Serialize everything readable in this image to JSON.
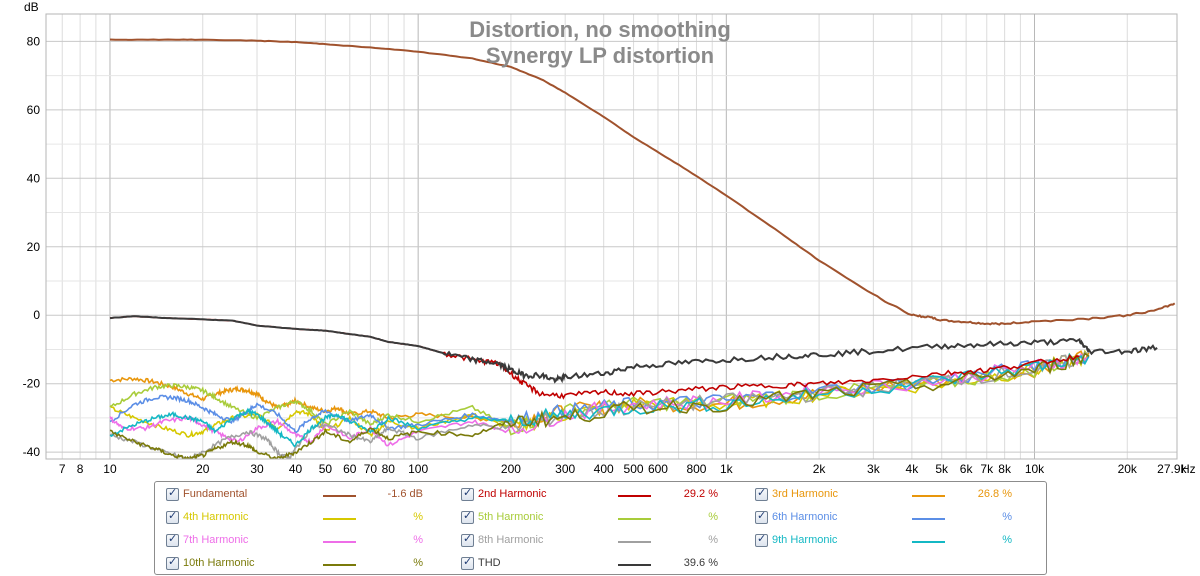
{
  "chart_data": {
    "type": "line",
    "title": "Distortion, no smoothing",
    "subtitle": "Synergy LP distortion",
    "ylabel": "dB",
    "xunit": "Hz",
    "xscale": "log",
    "xlim": [
      6.2,
      29000
    ],
    "ylim": [
      -42,
      88
    ],
    "grid": true,
    "y_ticks": [
      80,
      60,
      40,
      20,
      0,
      -20,
      -40
    ],
    "x_ticks": [
      {
        "v": 7,
        "label": "7"
      },
      {
        "v": 8,
        "label": "8"
      },
      {
        "v": 10,
        "label": "10"
      },
      {
        "v": 20,
        "label": "20"
      },
      {
        "v": 30,
        "label": "30"
      },
      {
        "v": 40,
        "label": "40"
      },
      {
        "v": 50,
        "label": "50"
      },
      {
        "v": 60,
        "label": "60"
      },
      {
        "v": 70,
        "label": "70"
      },
      {
        "v": 80,
        "label": "80"
      },
      {
        "v": 100,
        "label": "100"
      },
      {
        "v": 200,
        "label": "200"
      },
      {
        "v": 300,
        "label": "300"
      },
      {
        "v": 400,
        "label": "400"
      },
      {
        "v": 500,
        "label": "500"
      },
      {
        "v": 600,
        "label": "600"
      },
      {
        "v": 800,
        "label": "800"
      },
      {
        "v": 1000,
        "label": "1k"
      },
      {
        "v": 2000,
        "label": "2k"
      },
      {
        "v": 3000,
        "label": "3k"
      },
      {
        "v": 4000,
        "label": "4k"
      },
      {
        "v": 5000,
        "label": "5k"
      },
      {
        "v": 6000,
        "label": "6k"
      },
      {
        "v": 7000,
        "label": "7k"
      },
      {
        "v": 8000,
        "label": "8k"
      },
      {
        "v": 10000,
        "label": "10k"
      },
      {
        "v": 20000,
        "label": "20k"
      },
      {
        "v": 27900,
        "label": "27.9k"
      }
    ],
    "series": [
      {
        "name": "Fundamental",
        "color": "#a0522d",
        "value": "-1.6 dB",
        "x": [
          10,
          15,
          20,
          30,
          40,
          50,
          70,
          100,
          150,
          200,
          250,
          300,
          400,
          500,
          700,
          1000,
          1500,
          2000,
          3000,
          4000,
          4500,
          5000,
          6000,
          7000,
          8000,
          10000,
          15000,
          20000,
          25000,
          28500
        ],
        "y": [
          80.5,
          80.5,
          80.5,
          80.2,
          79.8,
          79.2,
          78.2,
          77,
          75,
          72.5,
          69,
          65,
          58,
          52,
          44,
          35,
          24,
          16,
          6,
          0,
          -0.5,
          -1.5,
          -2,
          -2.5,
          -2.5,
          -1.8,
          -1,
          0,
          1.5,
          3.5
        ]
      },
      {
        "name": "2nd Harmonic",
        "color": "#c00000",
        "value": "29.2 %",
        "x": [
          10,
          12,
          15,
          20,
          25,
          30,
          40,
          50,
          60,
          70,
          80,
          100,
          120,
          150,
          180,
          200,
          220,
          250,
          300,
          400,
          500,
          700,
          1000,
          1500,
          2000,
          3000,
          5000,
          7000,
          10000,
          14000
        ],
        "y": [
          -0.8,
          -0.3,
          -0.8,
          -1.2,
          -1.6,
          -3,
          -4,
          -4.5,
          -5.5,
          -6.3,
          -7.8,
          -9,
          -11,
          -13,
          -14,
          -17,
          -20,
          -23,
          -23.5,
          -22.5,
          -23,
          -22,
          -21,
          -20.5,
          -20,
          -19,
          -17,
          -16,
          -14,
          -12
        ]
      },
      {
        "name": "3rd Harmonic",
        "color": "#e8960c",
        "value": "26.8 %",
        "x": [
          10,
          12,
          14,
          16,
          18,
          20,
          22,
          24,
          26,
          28,
          30,
          32,
          35,
          38,
          40,
          45,
          50,
          55,
          60,
          70,
          80,
          100,
          150,
          200,
          300,
          500,
          1000,
          2000,
          5000,
          10000,
          15000
        ],
        "y": [
          -19,
          -18.5,
          -19.5,
          -21,
          -23,
          -24.5,
          -23,
          -22,
          -21.5,
          -22,
          -23,
          -25,
          -27,
          -26,
          -25,
          -27,
          -28,
          -27,
          -29,
          -28,
          -30,
          -29,
          -30,
          -31,
          -28,
          -26,
          -26,
          -23,
          -19,
          -16,
          -11
        ]
      },
      {
        "name": "4th Harmonic",
        "color": "#d6c800",
        "value": "%",
        "x": [
          10,
          12,
          15,
          18,
          20,
          22,
          25,
          30,
          35,
          40,
          45,
          50,
          60,
          70,
          80,
          100,
          150,
          200,
          300,
          500,
          1000,
          2000,
          5000,
          10000,
          15000
        ],
        "y": [
          -27,
          -30,
          -33,
          -35,
          -34,
          -32,
          -30,
          -29,
          -33,
          -28,
          -29,
          -34,
          -30,
          -35,
          -31,
          -33,
          -29,
          -33,
          -29,
          -26,
          -26,
          -23,
          -20,
          -16,
          -12
        ]
      },
      {
        "name": "5th Harmonic",
        "color": "#a8cc3a",
        "value": "%",
        "x": [
          10,
          12,
          14,
          16,
          18,
          20,
          22,
          25,
          30,
          35,
          40,
          45,
          50,
          60,
          70,
          80,
          100,
          150,
          200,
          300,
          500,
          1000,
          2000,
          5000,
          10000,
          15000
        ],
        "y": [
          -27,
          -23,
          -21,
          -20.5,
          -21,
          -22,
          -24,
          -27,
          -30,
          -27,
          -25,
          -28,
          -32,
          -28,
          -32,
          -29,
          -31,
          -27,
          -33,
          -28,
          -26,
          -25,
          -23,
          -20,
          -16,
          -12
        ]
      },
      {
        "name": "6th Harmonic",
        "color": "#5b8ee6",
        "value": "%",
        "x": [
          10,
          12,
          14,
          16,
          18,
          20,
          22,
          25,
          28,
          30,
          35,
          40,
          45,
          50,
          60,
          70,
          80,
          100,
          150,
          200,
          300,
          500,
          1000,
          2000,
          5000,
          10000,
          15000
        ],
        "y": [
          -31,
          -26,
          -24,
          -24,
          -25,
          -27,
          -29,
          -31,
          -28,
          -26,
          -29,
          -34,
          -30,
          -28,
          -31,
          -29,
          -33,
          -32,
          -29,
          -31,
          -28,
          -26,
          -25,
          -22,
          -19,
          -15,
          -12
        ]
      },
      {
        "name": "7th Harmonic",
        "color": "#ee6ee8",
        "value": "%",
        "x": [
          10,
          11,
          13,
          15,
          18,
          20,
          23,
          26,
          30,
          35,
          40,
          45,
          50,
          60,
          70,
          80,
          100,
          150,
          200,
          300,
          500,
          1000,
          2000,
          5000,
          10000,
          15000
        ],
        "y": [
          -30,
          -33,
          -33,
          -31,
          -30,
          -32,
          -35,
          -37,
          -33,
          -31,
          -35,
          -37,
          -32,
          -36,
          -33,
          -38,
          -34,
          -31,
          -34,
          -29,
          -26,
          -25,
          -22,
          -19,
          -15,
          -12
        ]
      },
      {
        "name": "8th Harmonic",
        "color": "#a0a0a0",
        "value": "%",
        "x": [
          10,
          12,
          15,
          18,
          20,
          24,
          28,
          32,
          35,
          38,
          40,
          45,
          50,
          60,
          70,
          80,
          100,
          150,
          200,
          300,
          500,
          1000,
          2000,
          5000,
          10000,
          15000
        ],
        "y": [
          -35,
          -37,
          -40,
          -42,
          -40,
          -36,
          -34,
          -36,
          -40,
          -42,
          -39,
          -33,
          -32,
          -35,
          -37,
          -33,
          -36,
          -32,
          -33,
          -29,
          -27,
          -25,
          -23,
          -19,
          -16,
          -12
        ]
      },
      {
        "name": "9th Harmonic",
        "color": "#14b8c4",
        "value": "%",
        "x": [
          10,
          12,
          14,
          16,
          18,
          20,
          22,
          25,
          28,
          30,
          33,
          36,
          40,
          45,
          50,
          55,
          60,
          70,
          80,
          100,
          150,
          200,
          300,
          500,
          1000,
          2000,
          5000,
          10000,
          15000
        ],
        "y": [
          -35,
          -32,
          -30,
          -29,
          -30,
          -31,
          -34,
          -30,
          -28,
          -29,
          -32,
          -35,
          -38,
          -33,
          -30,
          -29,
          -31,
          -34,
          -30,
          -33,
          -30,
          -31,
          -29,
          -27,
          -26,
          -23,
          -19,
          -15,
          -12
        ]
      },
      {
        "name": "10th Harmonic",
        "color": "#7a7a0a",
        "value": "%",
        "x": [
          10,
          12,
          14,
          16,
          18,
          20,
          22,
          25,
          28,
          30,
          35,
          40,
          45,
          50,
          60,
          70,
          80,
          100,
          150,
          200,
          300,
          500,
          1000,
          2000,
          5000,
          10000,
          15000
        ],
        "y": [
          -34,
          -37,
          -39,
          -41,
          -42,
          -41,
          -39,
          -37,
          -38,
          -40,
          -42,
          -40,
          -37,
          -34,
          -37,
          -33,
          -36,
          -34,
          -35,
          -31,
          -30,
          -27,
          -26,
          -23,
          -20,
          -16,
          -12
        ]
      },
      {
        "name": "THD",
        "color": "#3a3a3a",
        "value": "39.6 %",
        "x": [
          10,
          12,
          15,
          20,
          25,
          30,
          40,
          50,
          60,
          70,
          80,
          100,
          120,
          150,
          180,
          200,
          220,
          250,
          280,
          300,
          400,
          500,
          700,
          1000,
          1500,
          2000,
          3000,
          5000,
          7000,
          10000,
          14000,
          15000,
          20000,
          25000
        ],
        "y": [
          -0.8,
          -0.3,
          -0.8,
          -1.2,
          -1.6,
          -3,
          -4,
          -4.5,
          -5.5,
          -6.3,
          -7.8,
          -9,
          -11,
          -13,
          -14,
          -16,
          -17.5,
          -17.5,
          -19,
          -18,
          -17,
          -15,
          -14,
          -13,
          -12,
          -11.5,
          -10.5,
          -9,
          -8.5,
          -8,
          -7.5,
          -10.5,
          -10.5,
          -9.5
        ]
      }
    ]
  }
}
